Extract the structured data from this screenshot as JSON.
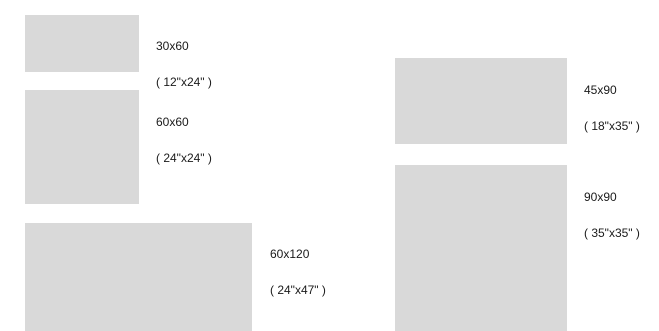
{
  "tiles": [
    {
      "id": "30x60",
      "size_cm": "30x60",
      "size_in": "( 12\"x24\" )",
      "color": "#d9d9d9"
    },
    {
      "id": "60x60",
      "size_cm": "60x60",
      "size_in": "( 24\"x24\" )",
      "color": "#d9d9d9"
    },
    {
      "id": "60x120",
      "size_cm": "60x120",
      "size_in": "( 24\"x47\" )",
      "color": "#d9d9d9"
    },
    {
      "id": "45x90",
      "size_cm": "45x90",
      "size_in": "( 18\"x35\" )",
      "color": "#d9d9d9"
    },
    {
      "id": "90x90",
      "size_cm": "90x90",
      "size_in": "( 35\"x35\" )",
      "color": "#d9d9d9"
    }
  ]
}
